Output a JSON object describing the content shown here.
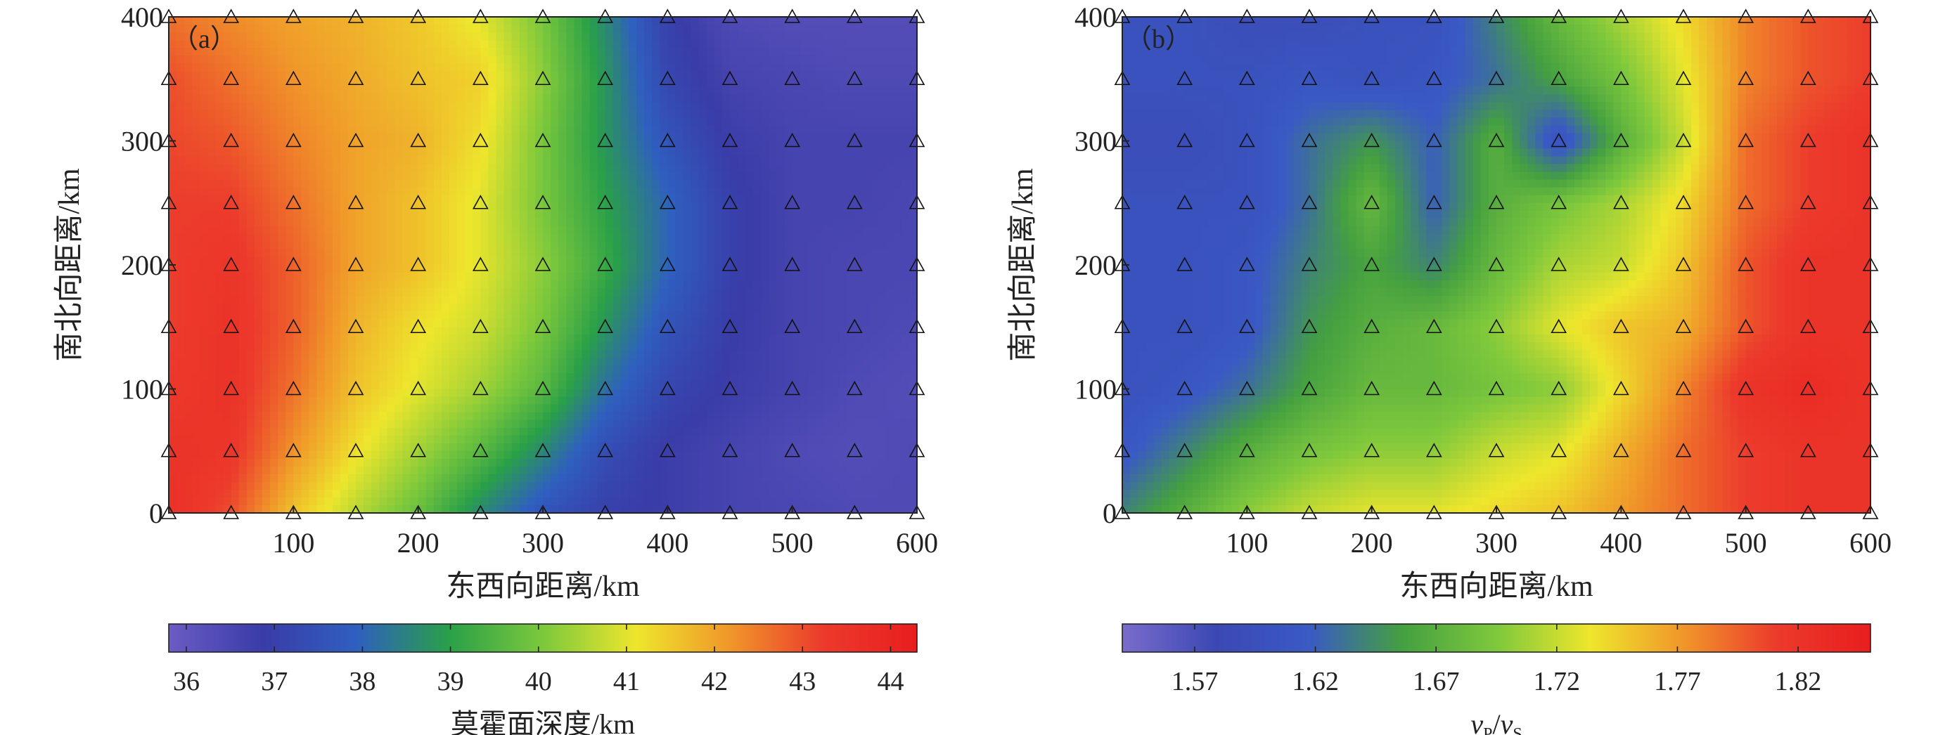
{
  "chart_data": [
    {
      "type": "heatmap",
      "panel_label": "（a）",
      "xlabel": "东西向距离/km",
      "ylabel": "南北向距离/km",
      "xlim": [
        0,
        600
      ],
      "ylim": [
        0,
        400
      ],
      "x_ticks": [
        100,
        200,
        300,
        400,
        500,
        600
      ],
      "y_ticks": [
        0,
        100,
        200,
        300,
        400
      ],
      "x_tick_labels": [
        "100",
        "200",
        "300",
        "400",
        "500",
        "600"
      ],
      "y_tick_labels": [
        "0",
        "100",
        "200",
        "300",
        "400"
      ],
      "grid_x": [
        0,
        50,
        100,
        150,
        200,
        250,
        300,
        350,
        400,
        450,
        500,
        550,
        600
      ],
      "grid_y": [
        0,
        50,
        100,
        150,
        200,
        250,
        300,
        350,
        400
      ],
      "values": [
        [
          43.6,
          43.0,
          41.6,
          40.6,
          39.8,
          38.6,
          37.6,
          37.0,
          36.8,
          36.6,
          36.5,
          36.4,
          36.4
        ],
        [
          43.5,
          43.4,
          42.2,
          41.2,
          40.4,
          39.6,
          38.6,
          37.4,
          36.8,
          36.6,
          36.4,
          36.3,
          36.4
        ],
        [
          43.3,
          43.5,
          42.6,
          41.6,
          41.0,
          40.4,
          39.6,
          38.2,
          37.2,
          36.8,
          36.6,
          36.4,
          36.3
        ],
        [
          43.2,
          43.5,
          42.8,
          41.8,
          41.2,
          40.8,
          40.0,
          38.8,
          37.6,
          36.9,
          36.6,
          36.5,
          36.4
        ],
        [
          43.2,
          43.4,
          42.8,
          42.0,
          41.6,
          41.0,
          40.2,
          39.2,
          38.0,
          37.0,
          36.6,
          36.5,
          36.5
        ],
        [
          43.2,
          43.2,
          42.6,
          42.0,
          41.6,
          41.0,
          40.0,
          39.0,
          38.0,
          37.0,
          36.6,
          36.6,
          36.5
        ],
        [
          43.1,
          42.9,
          42.4,
          42.0,
          41.8,
          41.2,
          40.0,
          38.8,
          37.6,
          36.8,
          36.6,
          36.6,
          36.6
        ],
        [
          43.0,
          42.6,
          42.2,
          41.9,
          41.6,
          41.4,
          40.2,
          38.8,
          37.2,
          36.6,
          36.5,
          36.4,
          36.4
        ],
        [
          42.6,
          42.3,
          42.0,
          41.8,
          41.5,
          41.0,
          40.0,
          38.6,
          37.0,
          36.4,
          36.3,
          36.3,
          36.3
        ]
      ],
      "colorbar": {
        "label": "莫霍面深度/km",
        "min": 35.8,
        "max": 44.3,
        "ticks": [
          36,
          37,
          38,
          39,
          40,
          41,
          42,
          43,
          44
        ],
        "tick_labels": [
          "36",
          "37",
          "38",
          "39",
          "40",
          "41",
          "42",
          "43",
          "44"
        ],
        "colors": [
          "#6a5cc4",
          "#3a3ca8",
          "#2f5fc0",
          "#2aa048",
          "#7cc83c",
          "#eee62c",
          "#f0962a",
          "#ec3a2c",
          "#e81e1e"
        ]
      }
    },
    {
      "type": "heatmap",
      "panel_label": "（b）",
      "xlabel": "东西向距离/km",
      "ylabel": "南北向距离/km",
      "xlim": [
        0,
        600
      ],
      "ylim": [
        0,
        400
      ],
      "x_ticks": [
        100,
        200,
        300,
        400,
        500,
        600
      ],
      "y_ticks": [
        0,
        100,
        200,
        300,
        400
      ],
      "x_tick_labels": [
        "100",
        "200",
        "300",
        "400",
        "500",
        "600"
      ],
      "y_tick_labels": [
        "0",
        "100",
        "200",
        "300",
        "400"
      ],
      "grid_x": [
        0,
        50,
        100,
        150,
        200,
        250,
        300,
        350,
        400,
        450,
        500,
        550,
        600
      ],
      "grid_y": [
        0,
        50,
        100,
        150,
        200,
        250,
        300,
        350,
        400
      ],
      "values": [
        [
          1.64,
          1.67,
          1.7,
          1.72,
          1.73,
          1.73,
          1.74,
          1.75,
          1.77,
          1.79,
          1.81,
          1.82,
          1.82
        ],
        [
          1.61,
          1.64,
          1.67,
          1.69,
          1.7,
          1.7,
          1.72,
          1.73,
          1.76,
          1.79,
          1.81,
          1.82,
          1.82
        ],
        [
          1.6,
          1.61,
          1.63,
          1.66,
          1.68,
          1.68,
          1.69,
          1.7,
          1.74,
          1.78,
          1.82,
          1.83,
          1.82
        ],
        [
          1.6,
          1.6,
          1.61,
          1.65,
          1.67,
          1.68,
          1.7,
          1.73,
          1.75,
          1.76,
          1.8,
          1.82,
          1.82
        ],
        [
          1.6,
          1.6,
          1.61,
          1.64,
          1.66,
          1.64,
          1.68,
          1.71,
          1.72,
          1.75,
          1.8,
          1.82,
          1.82
        ],
        [
          1.6,
          1.6,
          1.6,
          1.63,
          1.68,
          1.62,
          1.67,
          1.69,
          1.71,
          1.74,
          1.79,
          1.81,
          1.82
        ],
        [
          1.59,
          1.59,
          1.6,
          1.63,
          1.65,
          1.62,
          1.67,
          1.6,
          1.67,
          1.72,
          1.79,
          1.81,
          1.82
        ],
        [
          1.6,
          1.6,
          1.6,
          1.61,
          1.6,
          1.61,
          1.63,
          1.66,
          1.69,
          1.73,
          1.78,
          1.8,
          1.81
        ],
        [
          1.6,
          1.6,
          1.59,
          1.59,
          1.6,
          1.6,
          1.64,
          1.68,
          1.71,
          1.74,
          1.78,
          1.8,
          1.81
        ]
      ],
      "colorbar": {
        "label_v1": "v",
        "label_sub1": "P",
        "label_slash": "/",
        "label_v2": "v",
        "label_sub2": "S",
        "min": 1.54,
        "max": 1.85,
        "ticks": [
          1.57,
          1.62,
          1.67,
          1.72,
          1.77,
          1.82
        ],
        "tick_labels": [
          "1.57",
          "1.62",
          "1.67",
          "1.72",
          "1.77",
          "1.82"
        ],
        "colors": [
          "#7a6ccc",
          "#3b48b4",
          "#3a5ac4",
          "#44a040",
          "#7ec83c",
          "#eee62c",
          "#f0962a",
          "#ec3a2c",
          "#e81e1e"
        ]
      }
    }
  ]
}
